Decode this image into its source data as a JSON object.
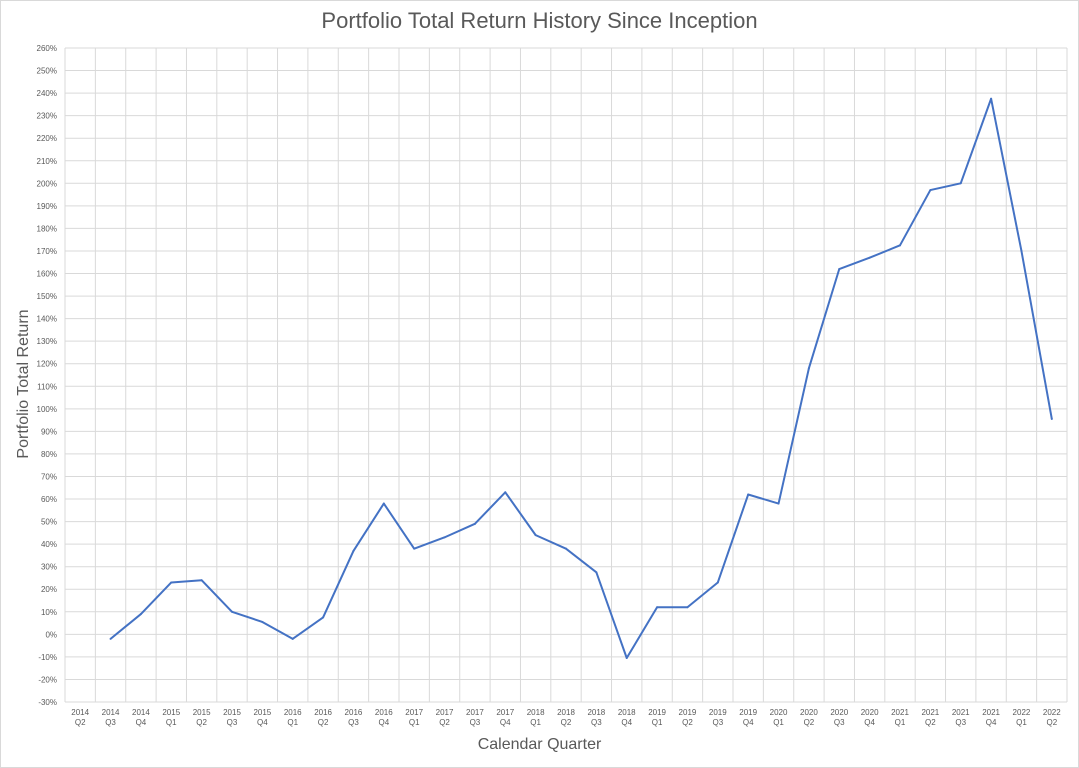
{
  "chart_data": {
    "type": "line",
    "title": "Portfolio Total Return History Since Inception",
    "xlabel": "Calendar Quarter",
    "ylabel": "Portfolio Total Return",
    "ylim": [
      -30,
      260
    ],
    "ytick_step": 10,
    "y_unit": "%",
    "grid": true,
    "legend": "none",
    "line_color": "#4472c4",
    "grid_color": "#d9d9d9",
    "categories": [
      [
        "2014",
        "Q2"
      ],
      [
        "2014",
        "Q3"
      ],
      [
        "2014",
        "Q4"
      ],
      [
        "2015",
        "Q1"
      ],
      [
        "2015",
        "Q2"
      ],
      [
        "2015",
        "Q3"
      ],
      [
        "2015",
        "Q4"
      ],
      [
        "2016",
        "Q1"
      ],
      [
        "2016",
        "Q2"
      ],
      [
        "2016",
        "Q3"
      ],
      [
        "2016",
        "Q4"
      ],
      [
        "2017",
        "Q1"
      ],
      [
        "2017",
        "Q2"
      ],
      [
        "2017",
        "Q3"
      ],
      [
        "2017",
        "Q4"
      ],
      [
        "2018",
        "Q1"
      ],
      [
        "2018",
        "Q2"
      ],
      [
        "2018",
        "Q3"
      ],
      [
        "2018",
        "Q4"
      ],
      [
        "2019",
        "Q1"
      ],
      [
        "2019",
        "Q2"
      ],
      [
        "2019",
        "Q3"
      ],
      [
        "2019",
        "Q4"
      ],
      [
        "2020",
        "Q1"
      ],
      [
        "2020",
        "Q2"
      ],
      [
        "2020",
        "Q3"
      ],
      [
        "2020",
        "Q4"
      ],
      [
        "2021",
        "Q1"
      ],
      [
        "2021",
        "Q2"
      ],
      [
        "2021",
        "Q3"
      ],
      [
        "2021",
        "Q4"
      ],
      [
        "2022",
        "Q1"
      ],
      [
        "2022",
        "Q2"
      ]
    ],
    "values": [
      null,
      -2,
      9,
      23,
      24,
      10,
      5.5,
      -2,
      7.5,
      37,
      58,
      38,
      43,
      49,
      63,
      44,
      38,
      27.5,
      -10.5,
      12,
      12,
      23,
      62,
      58,
      118,
      162,
      167,
      172.5,
      197,
      200,
      237.5,
      170,
      95.5
    ]
  }
}
